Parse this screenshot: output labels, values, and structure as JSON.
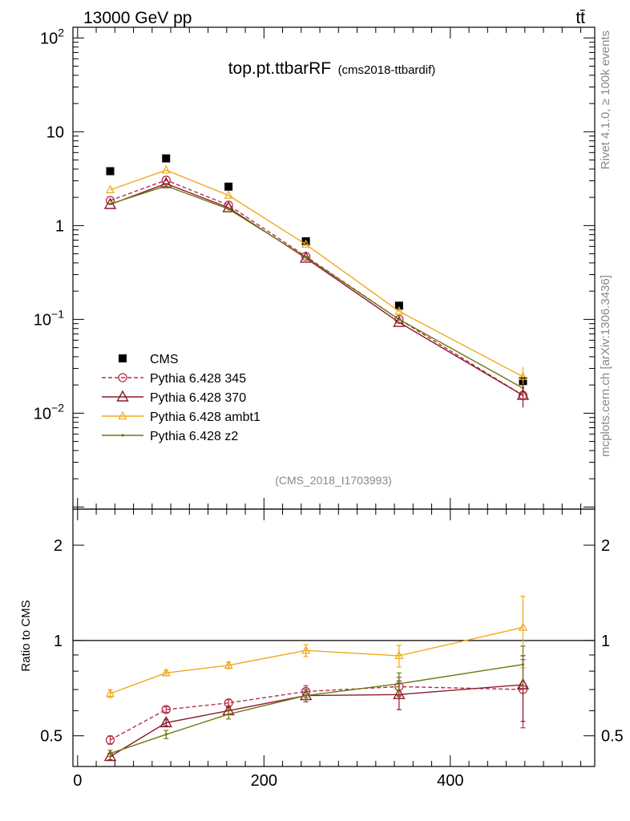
{
  "header": {
    "energy_label": "13000 GeV pp",
    "process_label": "tt̄"
  },
  "side_labels": {
    "rivet": "Rivet 4.1.0, ≥ 100k events",
    "mcplots": "mcplots.cern.ch [arXiv:1306.3436]"
  },
  "chart_data": [
    {
      "type": "scatter",
      "panel": "main",
      "title": "top.pt.ttbarRF",
      "subtitle": "(cms2018-ttbardif)",
      "watermark": "(CMS_2018_I1703993)",
      "yscale": "log",
      "xlim": [
        -5,
        555
      ],
      "ylim": [
        0.00095,
        130
      ],
      "ytick_labels": [
        {
          "value": 0.01,
          "base": "10",
          "exp": "−2"
        },
        {
          "value": 0.1,
          "base": "10",
          "exp": "−1"
        },
        {
          "value": 1,
          "base": "1",
          "exp": ""
        },
        {
          "value": 10,
          "base": "10",
          "exp": ""
        },
        {
          "value": 100,
          "base": "10",
          "exp": "2"
        }
      ],
      "legend_position": "center-left",
      "x": [
        35,
        95,
        162,
        245,
        345,
        478
      ],
      "series": [
        {
          "name": "CMS",
          "color": "#000000",
          "marker": "square",
          "line": "none",
          "values": [
            3.8,
            5.2,
            2.6,
            0.68,
            0.14,
            0.022
          ]
        },
        {
          "name": "Pythia 6.428 345",
          "color": "#b5304a",
          "marker": "circle",
          "line": "dashed",
          "values": [
            1.85,
            3.05,
            1.65,
            0.47,
            0.1,
            0.0155
          ]
        },
        {
          "name": "Pythia 6.428 370",
          "color": "#8b1a2b",
          "marker": "triangle",
          "line": "solid",
          "values": [
            1.68,
            2.8,
            1.55,
            0.45,
            0.093,
            0.0155
          ]
        },
        {
          "name": "Pythia 6.428 ambt1",
          "color": "#f0a818",
          "marker": "triangle-small",
          "line": "solid",
          "values": [
            2.4,
            3.9,
            2.1,
            0.63,
            0.122,
            0.0245
          ]
        },
        {
          "name": "Pythia 6.428 z2",
          "color": "#6b7a10",
          "marker": "dot",
          "line": "solid",
          "values": [
            1.7,
            2.65,
            1.5,
            0.46,
            0.1,
            0.0185
          ]
        }
      ]
    },
    {
      "type": "scatter",
      "panel": "ratio",
      "ylabel": "Ratio to CMS",
      "yscale": "log",
      "xlim": [
        -5,
        555
      ],
      "ylim": [
        0.4,
        2.6
      ],
      "x_tick_labels": [
        "0",
        "200",
        "400"
      ],
      "y_tick_labels": [
        "0.5",
        "1",
        "2"
      ],
      "x": [
        35,
        95,
        162,
        245,
        345,
        478
      ],
      "reference": 1,
      "series": [
        {
          "name": "Pythia 6.428 345",
          "values": [
            0.485,
            0.605,
            0.635,
            0.69,
            0.715,
            0.7
          ],
          "errors": [
            0.015,
            0.012,
            0.015,
            0.03,
            0.05,
            0.17
          ]
        },
        {
          "name": "Pythia 6.428 370",
          "values": [
            0.43,
            0.55,
            0.6,
            0.67,
            0.675,
            0.725
          ],
          "errors": [
            0.01,
            0.012,
            0.015,
            0.03,
            0.07,
            0.17
          ]
        },
        {
          "name": "Pythia 6.428 ambt1",
          "values": [
            0.68,
            0.79,
            0.835,
            0.93,
            0.895,
            1.1
          ],
          "errors": [
            0.02,
            0.015,
            0.02,
            0.04,
            0.07,
            0.28
          ]
        },
        {
          "name": "Pythia 6.428 z2",
          "values": [
            0.44,
            0.505,
            0.585,
            0.67,
            0.73,
            0.84
          ],
          "errors": [
            0.01,
            0.015,
            0.02,
            0.03,
            0.06,
            0.12
          ]
        }
      ]
    }
  ]
}
